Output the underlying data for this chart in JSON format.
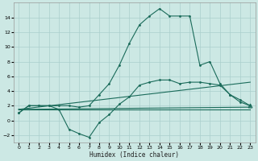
{
  "xlabel": "Humidex (Indice chaleur)",
  "bg_color": "#cce8e4",
  "line_color": "#1a6b5a",
  "grid_color": "#aacfcc",
  "xlim": [
    -0.5,
    23.5
  ],
  "ylim": [
    -3.0,
    16.0
  ],
  "xticks": [
    0,
    1,
    2,
    3,
    4,
    5,
    6,
    7,
    8,
    9,
    10,
    11,
    12,
    13,
    14,
    15,
    16,
    17,
    18,
    19,
    20,
    21,
    22,
    23
  ],
  "yticks": [
    -2,
    0,
    2,
    4,
    6,
    8,
    10,
    12,
    14
  ],
  "line1_x": [
    0,
    1,
    2,
    3,
    4,
    5,
    6,
    7,
    8,
    9,
    10,
    11,
    12,
    13,
    14,
    15,
    16,
    17,
    18,
    19,
    20,
    21,
    22,
    23
  ],
  "line1_y": [
    1.0,
    2.0,
    2.0,
    2.0,
    2.0,
    2.0,
    1.8,
    2.0,
    3.5,
    5.0,
    7.5,
    10.5,
    13.0,
    14.2,
    15.2,
    14.2,
    14.2,
    14.2,
    7.5,
    8.0,
    5.0,
    3.5,
    2.5,
    2.0
  ],
  "line2_x": [
    0,
    1,
    2,
    3,
    4,
    5,
    6,
    7,
    8,
    9,
    10,
    11,
    12,
    13,
    14,
    15,
    16,
    17,
    18,
    19,
    20,
    21,
    22,
    23
  ],
  "line2_y": [
    1.0,
    2.0,
    2.0,
    2.0,
    1.5,
    -1.2,
    -1.8,
    -2.3,
    -0.3,
    0.8,
    2.2,
    3.2,
    4.8,
    5.2,
    5.5,
    5.5,
    5.0,
    5.2,
    5.2,
    5.0,
    4.8,
    3.5,
    2.8,
    2.0
  ],
  "line3_x": [
    0,
    23
  ],
  "line3_y": [
    1.5,
    1.5
  ],
  "line4_x": [
    0,
    23
  ],
  "line4_y": [
    1.5,
    5.2
  ],
  "line5_x": [
    0,
    23
  ],
  "line5_y": [
    1.5,
    1.8
  ]
}
